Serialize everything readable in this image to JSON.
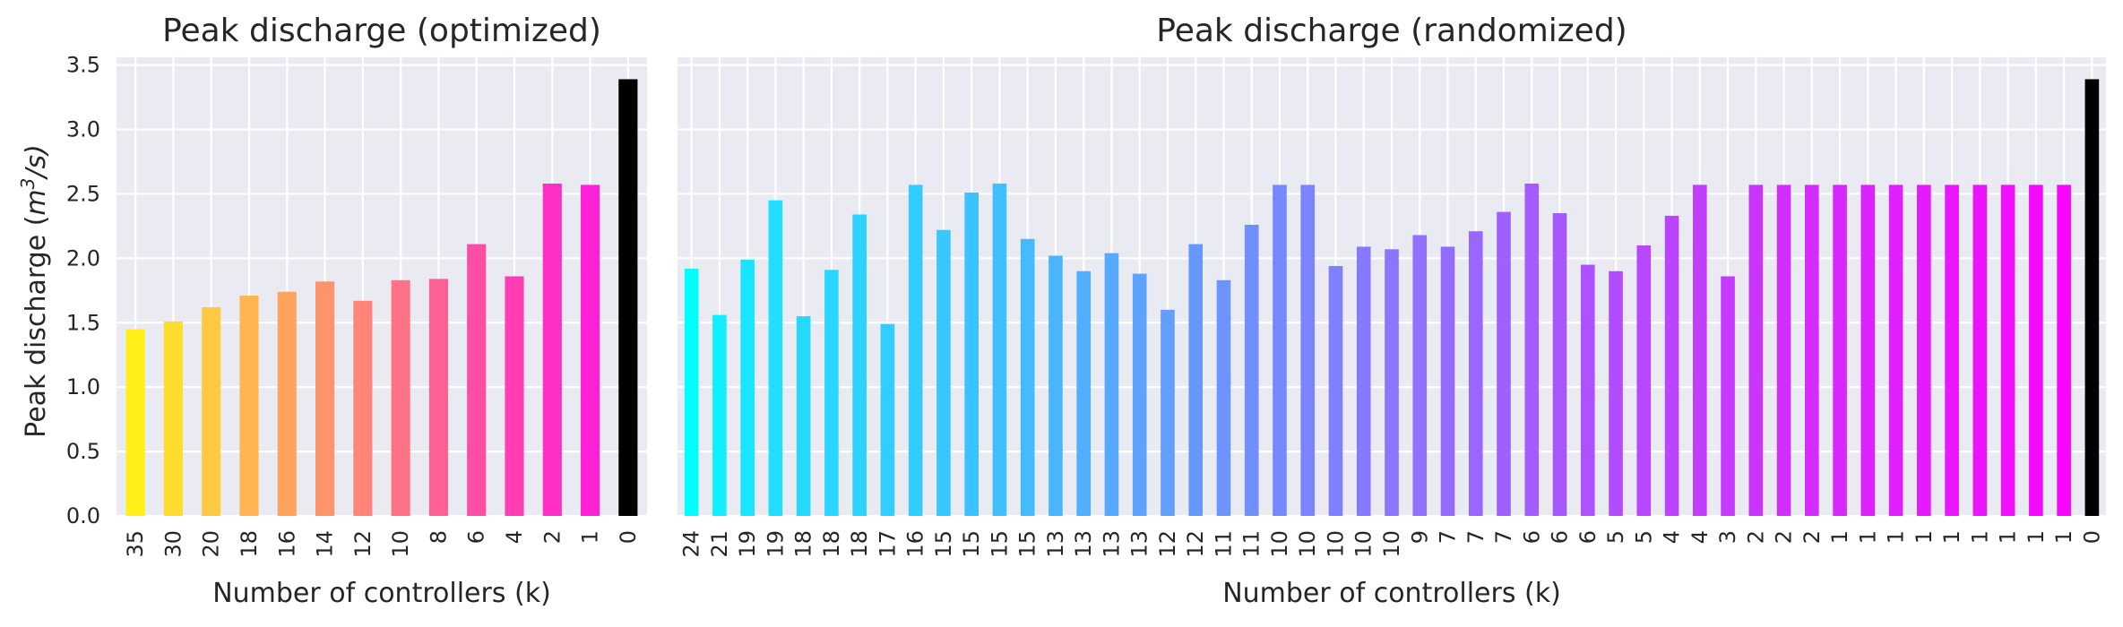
{
  "chart_data": [
    {
      "type": "bar",
      "title": "Peak discharge (optimized)",
      "xlabel": "Number of controllers (k)",
      "ylabel": "Peak discharge (m³/s)",
      "ylabel_parts": {
        "prefix": "Peak discharge (",
        "unit_base": "m",
        "unit_exp": "3",
        "unit_rest": "/s)"
      },
      "ylim": [
        0,
        3.56
      ],
      "yticks": [
        "0.0",
        "0.5",
        "1.0",
        "1.5",
        "2.0",
        "2.5",
        "3.0",
        "3.5"
      ],
      "ytick_values": [
        0,
        0.5,
        1.0,
        1.5,
        2.0,
        2.5,
        3.0,
        3.5
      ],
      "grid": true,
      "categories": [
        "35",
        "30",
        "20",
        "18",
        "16",
        "14",
        "12",
        "10",
        "8",
        "6",
        "4",
        "2",
        "1",
        "0"
      ],
      "values": [
        1.45,
        1.51,
        1.62,
        1.71,
        1.74,
        1.82,
        1.67,
        1.83,
        1.84,
        2.11,
        1.86,
        2.58,
        2.57,
        3.39
      ],
      "colors": [
        "#fff01a",
        "#ffdd2e",
        "#ffc941",
        "#ffb551",
        "#ffa45f",
        "#ff946c",
        "#ff8479",
        "#ff7386",
        "#ff6194",
        "#ff4da5",
        "#ff3eb4",
        "#ff2ec4",
        "#ff21d6",
        "#000000"
      ]
    },
    {
      "type": "bar",
      "title": "Peak discharge (randomized)",
      "xlabel": "Number of controllers (k)",
      "ylim": [
        0,
        3.56
      ],
      "grid": true,
      "categories": [
        "24",
        "21",
        "19",
        "19",
        "18",
        "18",
        "18",
        "17",
        "16",
        "15",
        "15",
        "15",
        "15",
        "13",
        "13",
        "13",
        "13",
        "12",
        "12",
        "11",
        "11",
        "10",
        "10",
        "10",
        "10",
        "10",
        "9",
        "7",
        "7",
        "7",
        "6",
        "6",
        "6",
        "5",
        "5",
        "4",
        "4",
        "3",
        "2",
        "2",
        "2",
        "1",
        "1",
        "1",
        "1",
        "1",
        "1",
        "1",
        "1",
        "1",
        "0"
      ],
      "values": [
        1.92,
        1.56,
        1.99,
        2.45,
        1.55,
        1.91,
        2.34,
        1.49,
        2.57,
        2.22,
        2.51,
        2.58,
        2.15,
        2.02,
        1.9,
        2.04,
        1.88,
        1.6,
        2.11,
        1.83,
        2.26,
        2.57,
        2.57,
        1.94,
        2.09,
        2.07,
        2.18,
        2.09,
        2.21,
        2.36,
        2.58,
        2.35,
        1.95,
        1.9,
        2.1,
        2.33,
        2.57,
        1.86,
        2.57,
        2.57,
        2.57,
        2.57,
        2.57,
        2.57,
        2.57,
        2.57,
        2.57,
        2.57,
        2.57,
        2.57,
        3.39
      ],
      "colors": [
        "#00ffff",
        "#12efff",
        "#1be4ff",
        "#22deff",
        "#26daff",
        "#2ad6ff",
        "#2ed2ff",
        "#31ceff",
        "#33ccff",
        "#38c7ff",
        "#3cc3ff",
        "#40bfff",
        "#44bbff",
        "#4ab5ff",
        "#50afff",
        "#56a9ff",
        "#5ca3ff",
        "#619eff",
        "#6699ff",
        "#6c93ff",
        "#718eff",
        "#7788ff",
        "#7c83ff",
        "#807fff",
        "#857aff",
        "#8a75ff",
        "#8f70ff",
        "#946bff",
        "#9966ff",
        "#9e61ff",
        "#a35cff",
        "#a857ff",
        "#ad52ff",
        "#b24dff",
        "#b748ff",
        "#bc43ff",
        "#c13eff",
        "#c639ff",
        "#cb34ff",
        "#d02fff",
        "#d42bff",
        "#d827ff",
        "#dc23ff",
        "#e01fff",
        "#e41bff",
        "#e817ff",
        "#ec13ff",
        "#f00fff",
        "#f40bff",
        "#f806ff",
        "#000000"
      ]
    }
  ]
}
